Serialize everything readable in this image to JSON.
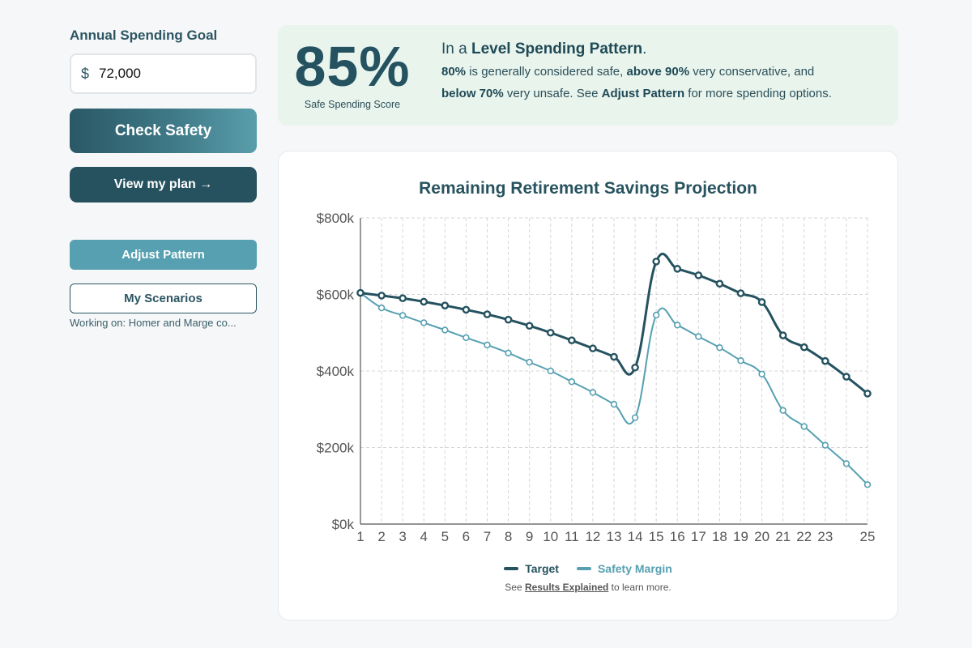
{
  "sidebar": {
    "goal_label": "Annual Spending Goal",
    "currency_symbol": "$",
    "goal_value": "72,000",
    "check_label": "Check Safety",
    "plan_label": "View my plan →",
    "adjust_label": "Adjust Pattern",
    "scenarios_label": "My Scenarios",
    "working_on": "Working on: Homer and Marge co..."
  },
  "score": {
    "value": "85%",
    "label": "Safe Spending Score",
    "line1_prefix": "In a ",
    "line1_bold": "Level Spending Pattern",
    "line1_suffix": ".",
    "p1_bold": "80%",
    "p1_text": " is generally considered safe, ",
    "p2_bold": "above 90%",
    "p2_text": " very conservative, and",
    "p3_bold": "below 70%",
    "p3_text": " very unsafe. See ",
    "p4_bold": "Adjust Pattern",
    "p4_text": " for more spending options."
  },
  "footer": {
    "prefix": "See ",
    "link": "Results Explained",
    "suffix": " to learn more."
  },
  "chart_data": {
    "type": "line",
    "title": "Remaining Retirement Savings Projection",
    "xlabel": "",
    "ylabel": "",
    "x": [
      1,
      2,
      3,
      4,
      5,
      6,
      7,
      8,
      9,
      10,
      11,
      12,
      13,
      14,
      15,
      16,
      17,
      18,
      19,
      20,
      21,
      22,
      23,
      24,
      25
    ],
    "x_tick_labels": [
      "1",
      "2",
      "3",
      "4",
      "5",
      "6",
      "7",
      "8",
      "9",
      "10",
      "11",
      "12",
      "13",
      "14",
      "15",
      "16",
      "17",
      "18",
      "19",
      "20",
      "21",
      "22",
      "23",
      "",
      "25"
    ],
    "y_ticks": [
      0,
      200,
      400,
      600,
      800
    ],
    "y_tick_labels": [
      "$0k",
      "$200k",
      "$400k",
      "$600k",
      "$800k"
    ],
    "ylim": [
      0,
      800
    ],
    "grid": true,
    "legend_position": "bottom",
    "series": [
      {
        "name": "Target",
        "color": "#24525f",
        "values": [
          604,
          597,
          590,
          581,
          571,
          560,
          548,
          534,
          518,
          500,
          480,
          459,
          437,
          409,
          686,
          667,
          650,
          628,
          603,
          580,
          493,
          462,
          426,
          385,
          341
        ]
      },
      {
        "name": "Safety Margin",
        "color": "#56a0b1",
        "values": [
          604,
          565,
          545,
          526,
          507,
          487,
          468,
          447,
          423,
          400,
          372,
          344,
          313,
          278,
          546,
          520,
          490,
          461,
          427,
          392,
          297,
          255,
          206,
          158,
          103
        ]
      }
    ]
  }
}
